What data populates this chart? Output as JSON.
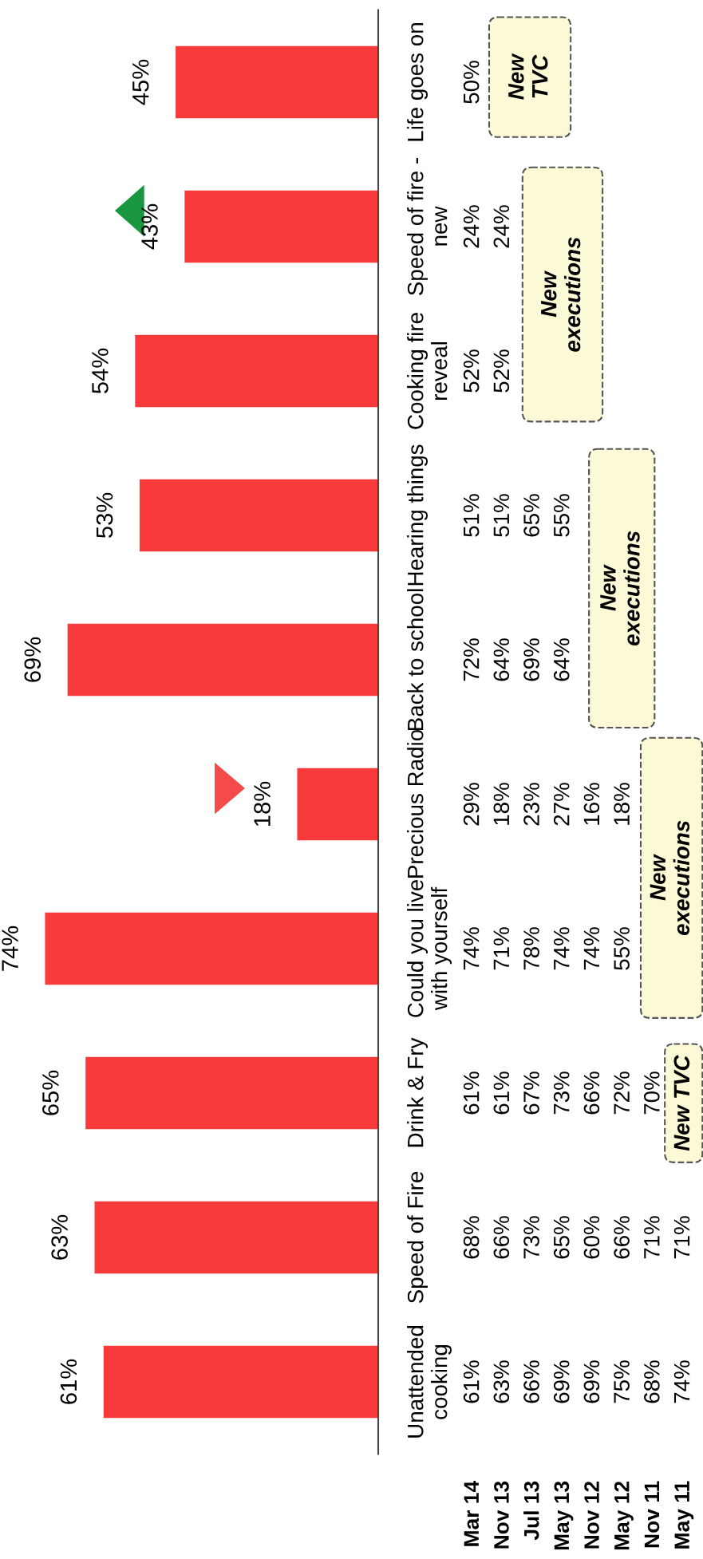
{
  "chart_data": [
    {
      "type": "bar",
      "orientation": "horizontal",
      "color": "#f83a3a",
      "categories": [
        "Life goes on",
        "Speed of fire -\nnew",
        "Cooking fire\nreveal",
        "Hearing things",
        "Back to school",
        "Precious Radio",
        "Could you live\nwith yourself",
        "Drink & Fry",
        "Speed of Fire",
        "Unattended\ncooking"
      ],
      "values": [
        45,
        43,
        54,
        53,
        69,
        18,
        74,
        65,
        63,
        61
      ],
      "value_labels": [
        "45%",
        "43%",
        "54%",
        "53%",
        "69%",
        "18%",
        "74%",
        "65%",
        "63%",
        "61%"
      ]
    },
    {
      "type": "heatmap",
      "categories": [
        "Mar 14",
        "Nov 13",
        "Jul 13",
        "May 13",
        "Nov 12",
        "May 12",
        "Nov 11",
        "May 11"
      ],
      "y_categories": [
        null,
        null,
        null,
        null,
        null,
        null,
        null,
        null,
        null,
        null
      ],
      "cells": [
        [
          50,
          null,
          null,
          null,
          null,
          null,
          null,
          null
        ],
        [
          24,
          24,
          null,
          null,
          null,
          null,
          null,
          null
        ],
        [
          52,
          52,
          null,
          null,
          null,
          null,
          null,
          null
        ],
        [
          51,
          51,
          65,
          55,
          null,
          null,
          null,
          null
        ],
        [
          72,
          64,
          69,
          64,
          null,
          null,
          null,
          null
        ],
        [
          29,
          18,
          23,
          27,
          16,
          18,
          null,
          null
        ],
        [
          74,
          71,
          78,
          74,
          74,
          55,
          null,
          null
        ],
        [
          61,
          61,
          67,
          73,
          66,
          72,
          70,
          null
        ],
        [
          68,
          66,
          73,
          65,
          60,
          66,
          71,
          71
        ],
        [
          61,
          63,
          66,
          69,
          69,
          75,
          68,
          74
        ]
      ],
      "cell_labels": [
        [
          "50%",
          null,
          null,
          null,
          null,
          null,
          null,
          null
        ],
        [
          "24%",
          "24%",
          null,
          null,
          null,
          null,
          null,
          null
        ],
        [
          "52%",
          "52%",
          null,
          null,
          null,
          null,
          null,
          null
        ],
        [
          "51%",
          "51%",
          "65%",
          "55%",
          null,
          null,
          null,
          null
        ],
        [
          "72%",
          "64%",
          "69%",
          "64%",
          null,
          null,
          null,
          null
        ],
        [
          "29%",
          "18%",
          "23%",
          "27%",
          "16%",
          "18%",
          null,
          null
        ],
        [
          "74%",
          "71%",
          "78%",
          "74%",
          "74%",
          "55%",
          null,
          null
        ],
        [
          "61%",
          "61%",
          "67%",
          "73%",
          "66%",
          "72%",
          "70%",
          null
        ],
        [
          "68%",
          "66%",
          "73%",
          "65%",
          "60%",
          "66%",
          "71%",
          "71%"
        ],
        [
          "61%",
          "63%",
          "66%",
          "69%",
          "69%",
          "75%",
          "68%",
          "74%"
        ]
      ],
      "annotations": [
        "New\nTVC",
        "New\nexecutions",
        "New\nexecutions",
        "New\nexecutions",
        "New TVC"
      ]
    }
  ]
}
